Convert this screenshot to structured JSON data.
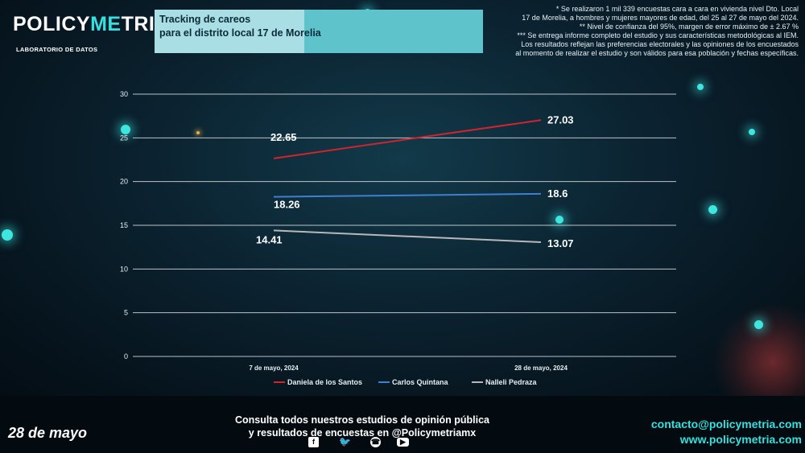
{
  "brand": {
    "logo_part1": "POLICY",
    "logo_part2": "ME",
    "logo_part3": "TRIA",
    "subtitle": "LABORATORIO DE DATOS"
  },
  "title": {
    "line1": "Tracking de careos",
    "line2": "para  el distrito local 17 de Morelia"
  },
  "notes": [
    "* Se realizaron 1 mil 339 encuestas cara a cara en vivienda nivel Dto. Local",
    "17 de Morelia, a hombres y mujeres mayores de edad, del 25 al 27 de mayo del 2024.",
    "** Nivel de confianza del 95%, margen de error máximo de ± 2.67 %",
    "*** Se entrega informe completo del estudio y sus características metodológicas al IEM.",
    "Los resultados reflejan las preferencias electorales y las opiniones de los encuestados",
    "al momento de realizar el estudio y son válidos para esa población y fechas específicas."
  ],
  "chart_data": {
    "type": "line",
    "categories": [
      "7 de mayo, 2024",
      "28 de mayo, 2024"
    ],
    "series": [
      {
        "name": "Daniela de los Santos",
        "values": [
          22.65,
          27.03
        ],
        "color": "#d2242f"
      },
      {
        "name": "Carlos Quintana",
        "values": [
          18.26,
          18.6
        ],
        "color": "#3f7fd1"
      },
      {
        "name": "Nalleli Pedraza",
        "values": [
          14.41,
          13.07
        ],
        "color": "#b8b8b8"
      }
    ],
    "ylim": [
      0,
      30
    ],
    "yticks": [
      "0",
      "5",
      "10",
      "15",
      "20",
      "25",
      "30"
    ],
    "data_labels": [
      [
        "22.65",
        "27.03"
      ],
      [
        "18.26",
        "18.6"
      ],
      [
        "14.41",
        "13.07"
      ]
    ],
    "grid": true,
    "legend": "bottom"
  },
  "footer": {
    "date": "28 de mayo",
    "consult_line1": "Consulta todos nuestros estudios de opinión pública",
    "consult_line2": "y resultados de encuestas en @Policymetriamx",
    "email": "contacto@policymetria.com",
    "website": "www.policymetria.com",
    "social": [
      "facebook-icon",
      "twitter-icon",
      "whatsapp-icon",
      "youtube-icon"
    ]
  }
}
